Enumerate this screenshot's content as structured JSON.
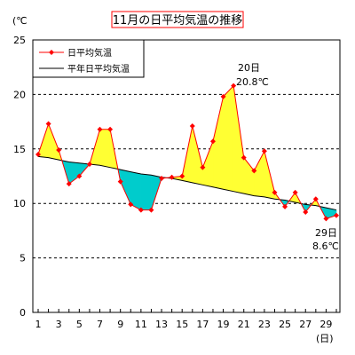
{
  "chart_data": {
    "type": "line",
    "title": "11月の日平均気温の推移",
    "y_unit_label": "(℃",
    "x_unit_label": "(日)",
    "ylim": [
      0,
      25
    ],
    "y_ticks": [
      0,
      5,
      10,
      15,
      20,
      25
    ],
    "x_ticks": [
      1,
      3,
      5,
      7,
      9,
      11,
      13,
      15,
      17,
      19,
      21,
      23,
      25,
      27,
      29
    ],
    "xlim": [
      1,
      30
    ],
    "grid": "horizontal-dashed",
    "legend_position": "top-left",
    "colors": {
      "daily": "#ff0000",
      "line": "#000000",
      "above_fill": "#ffff33",
      "below_fill": "#00cccc",
      "title_border": "#ff0000"
    },
    "x": [
      1,
      2,
      3,
      4,
      5,
      6,
      7,
      8,
      9,
      10,
      11,
      12,
      13,
      14,
      15,
      16,
      17,
      18,
      19,
      20,
      21,
      22,
      23,
      24,
      25,
      26,
      27,
      28,
      29,
      30
    ],
    "series": [
      {
        "name": "日平均気温",
        "values": [
          14.5,
          17.3,
          14.9,
          11.8,
          12.5,
          13.6,
          16.8,
          16.8,
          12.0,
          9.9,
          9.4,
          9.4,
          12.3,
          12.4,
          12.5,
          17.1,
          13.3,
          15.7,
          19.8,
          20.8,
          14.2,
          13.0,
          14.8,
          11.0,
          9.7,
          11.0,
          9.2,
          10.4,
          8.6,
          8.9
        ]
      },
      {
        "name": "平年日平均気温",
        "values": [
          14.3,
          14.2,
          14.0,
          13.8,
          13.7,
          13.6,
          13.5,
          13.3,
          13.1,
          12.9,
          12.7,
          12.6,
          12.4,
          12.3,
          12.1,
          11.9,
          11.7,
          11.5,
          11.3,
          11.1,
          10.9,
          10.7,
          10.6,
          10.4,
          10.3,
          10.1,
          9.9,
          9.8,
          9.6,
          9.4
        ]
      }
    ],
    "annotations": [
      {
        "day_label": "20日",
        "value_label": "20.8℃"
      },
      {
        "day_label": "29日",
        "value_label": "8.6℃"
      }
    ]
  }
}
